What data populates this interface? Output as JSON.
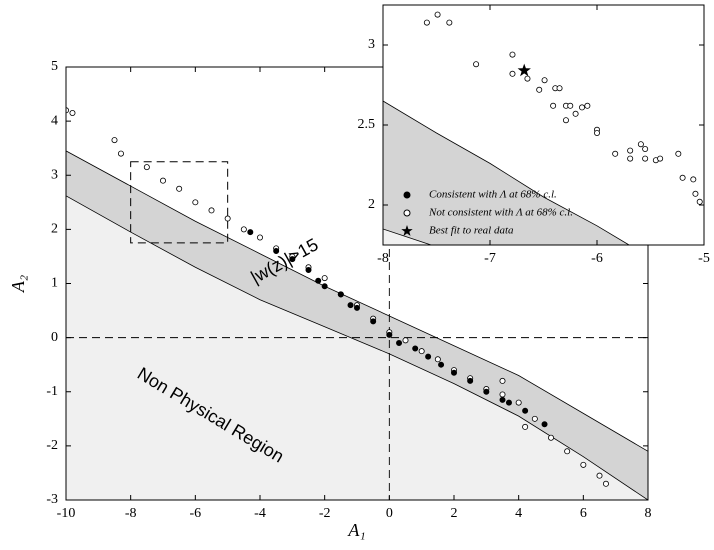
{
  "chart_data": [
    {
      "type": "scatter",
      "x_label": "A₁",
      "y_label": "A₂",
      "xlim": [
        -10,
        8
      ],
      "ylim": [
        -3,
        5
      ],
      "xticks": [
        -10,
        -8,
        -6,
        -4,
        -2,
        0,
        2,
        4,
        6,
        8
      ],
      "yticks": [
        -3,
        -2,
        -1,
        0,
        1,
        2,
        3,
        4,
        5
      ],
      "hlines": [
        0
      ],
      "vlines": [
        0
      ],
      "annotations": [
        "|w(z)|>15",
        "Non Physical Region"
      ],
      "regions": [
        {
          "color": "#d4d4d4",
          "x": [
            -10,
            -8,
            -6,
            -4,
            -2,
            0,
            2,
            4,
            6,
            8
          ],
          "y": [
            3.45,
            2.8,
            2.15,
            1.55,
            0.95,
            0.4,
            -0.15,
            -0.7,
            -1.4,
            -2.1
          ]
        },
        {
          "color": "#f0f0f0",
          "x": [
            -10,
            -8,
            -6,
            -4,
            -2,
            0,
            2,
            4,
            6,
            8
          ],
          "y": [
            2.62,
            1.95,
            1.3,
            0.7,
            0.2,
            -0.3,
            -0.85,
            -1.45,
            -2.2,
            -3
          ]
        }
      ],
      "series": [
        {
          "name": "Not consistent with Λ at 68% c.l.",
          "marker": "open",
          "color": "#000000",
          "x": [
            -10,
            -9.8,
            -8.5,
            -8.3,
            -7.5,
            -7,
            -6.5,
            -6,
            -5.5,
            -5,
            -4.5,
            -4,
            -3.5,
            -3,
            -2.5,
            -2,
            -1.5,
            -1,
            -0.5,
            0,
            0.5,
            1,
            1.5,
            2,
            2.5,
            3,
            3.5,
            4,
            4.5,
            5,
            5.5,
            6,
            6.5,
            6.7,
            3.5,
            4.2
          ],
          "y": [
            4.2,
            4.15,
            3.65,
            3.4,
            3.15,
            2.9,
            2.75,
            2.5,
            2.35,
            2.2,
            2.0,
            1.85,
            1.65,
            1.5,
            1.3,
            1.1,
            0.8,
            0.6,
            0.35,
            0.1,
            -0.05,
            -0.25,
            -0.4,
            -0.6,
            -0.75,
            -0.95,
            -1.05,
            -1.2,
            -1.5,
            -1.85,
            -2.1,
            -2.35,
            -2.55,
            -2.7,
            -0.8,
            -1.65
          ]
        },
        {
          "name": "Consistent with Λ at 68% c.l.",
          "marker": "filled",
          "color": "#000000",
          "x": [
            -4.3,
            -3.5,
            -3,
            -2.5,
            -2.2,
            -2,
            -1.5,
            -1.2,
            -1,
            -0.5,
            0,
            0.3,
            0.8,
            1.2,
            1.6,
            2,
            2.5,
            3,
            3.5,
            3.7,
            4.2,
            4.8
          ],
          "y": [
            1.95,
            1.6,
            1.45,
            1.25,
            1.05,
            0.95,
            0.8,
            0.6,
            0.55,
            0.3,
            0.05,
            -0.1,
            -0.2,
            -0.35,
            -0.5,
            -0.65,
            -0.8,
            -1.0,
            -1.15,
            -1.2,
            -1.35,
            -1.6
          ]
        }
      ]
    },
    {
      "type": "scatter",
      "legend": "lower left",
      "xlim": [
        -8,
        -5
      ],
      "ylim": [
        1.75,
        3.25
      ],
      "xticks": [
        -8,
        -7,
        -6,
        -5
      ],
      "yticks": [
        2,
        2.5,
        3
      ],
      "regions": [
        {
          "color": "#d4d4d4",
          "x": [
            -8,
            -7.5,
            -7,
            -6.5,
            -6,
            -5.7
          ],
          "y": [
            2.65,
            2.45,
            2.26,
            2.05,
            1.87,
            1.75
          ]
        },
        {
          "color": "#f0f0f0",
          "x": [
            -8,
            -7.55
          ],
          "y": [
            1.85,
            1.75
          ]
        }
      ],
      "series": [
        {
          "name": "Consistent with Λ at 68% c.l.",
          "marker": "filled",
          "color": "#000000",
          "x": [],
          "y": []
        },
        {
          "name": "Not consistent with Λ at 68% c.l.",
          "marker": "open",
          "color": "#000000",
          "x": [
            -7.59,
            -7.49,
            -7.38,
            -7.13,
            -6.79,
            -6.79,
            -6.65,
            -6.54,
            -6.49,
            -6.41,
            -6.39,
            -6.35,
            -6.29,
            -6.29,
            -6.25,
            -6.2,
            -6.14,
            -6.09,
            -6.0,
            -6.0,
            -5.83,
            -5.69,
            -5.69,
            -5.59,
            -5.55,
            -5.55,
            -5.45,
            -5.41,
            -5.24,
            -5.2,
            -5.1,
            -5.08,
            -5.04
          ],
          "y": [
            3.14,
            3.19,
            3.14,
            2.88,
            2.94,
            2.82,
            2.79,
            2.72,
            2.78,
            2.62,
            2.73,
            2.73,
            2.62,
            2.53,
            2.62,
            2.57,
            2.61,
            2.62,
            2.47,
            2.45,
            2.32,
            2.34,
            2.29,
            2.38,
            2.35,
            2.29,
            2.28,
            2.29,
            2.32,
            2.17,
            2.16,
            2.07,
            2.02
          ]
        },
        {
          "name": "Best fit to real data",
          "marker": "star",
          "color": "#000000",
          "x": [
            -6.68
          ],
          "y": [
            2.84
          ]
        }
      ]
    }
  ]
}
